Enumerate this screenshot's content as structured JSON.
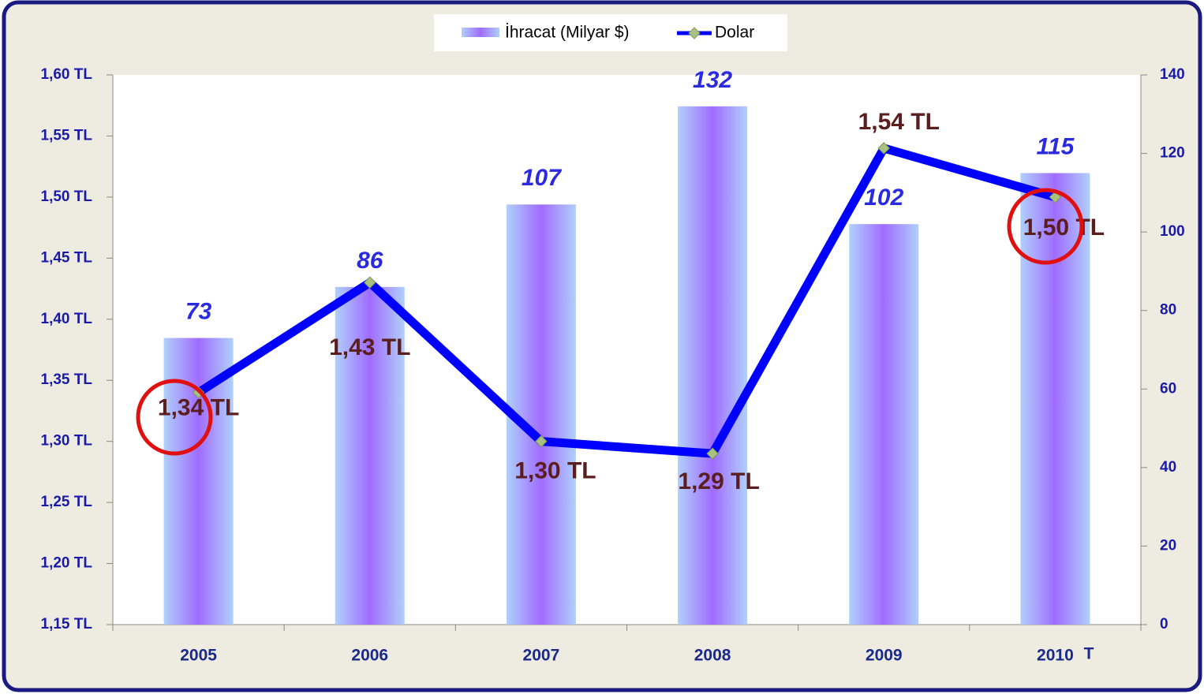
{
  "chart_data": {
    "type": "bar",
    "categories": [
      "2005",
      "2006",
      "2007",
      "2008",
      "2009",
      "2010"
    ],
    "series": [
      {
        "name": "İhracat (Milyar $)",
        "type": "bar",
        "axis": "y2",
        "color": "#a070ff",
        "values": [
          73,
          86,
          107,
          132,
          102,
          115
        ]
      },
      {
        "name": "Dolar",
        "type": "line",
        "axis": "y",
        "color": "#0000ff",
        "marker_color": "#a8c080",
        "values": [
          1.34,
          1.43,
          1.3,
          1.29,
          1.54,
          1.5
        ],
        "value_labels": [
          "1,34 TL",
          "1,43 TL",
          "1,30 TL",
          "1,29 TL",
          "1,54 TL",
          "1,50 TL"
        ]
      }
    ],
    "ylim": [
      1.15,
      1.6
    ],
    "yticks": [
      {
        "value": 1.15,
        "label": "1,15 TL"
      },
      {
        "value": 1.2,
        "label": "1,20 TL"
      },
      {
        "value": 1.25,
        "label": "1,25 TL"
      },
      {
        "value": 1.3,
        "label": "1,30 TL"
      },
      {
        "value": 1.35,
        "label": "1,35 TL"
      },
      {
        "value": 1.4,
        "label": "1,40 TL"
      },
      {
        "value": 1.45,
        "label": "1,45 TL"
      },
      {
        "value": 1.5,
        "label": "1,50 TL"
      },
      {
        "value": 1.55,
        "label": "1,55 TL"
      },
      {
        "value": 1.6,
        "label": "1,60 TL"
      }
    ],
    "y2lim": [
      0,
      140
    ],
    "y2ticks": [
      0,
      20,
      40,
      60,
      80,
      100,
      120,
      140
    ],
    "annotation": "T",
    "legend": "top"
  }
}
